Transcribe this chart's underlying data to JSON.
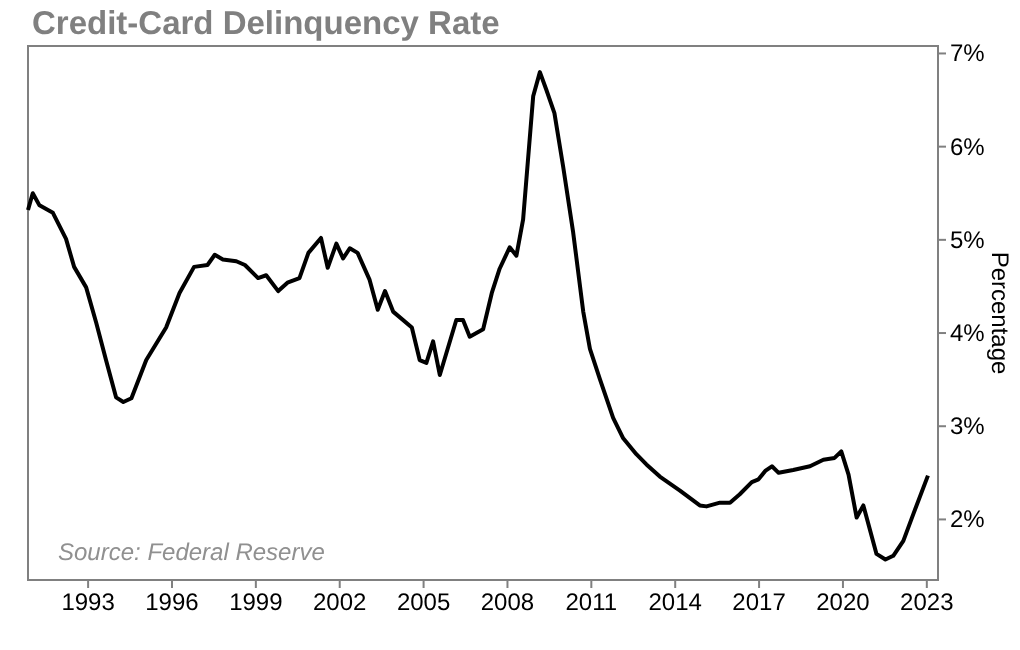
{
  "chart_data": {
    "type": "line",
    "title": "Credit-Card Delinquency Rate",
    "ylabel": "Percentage",
    "annotations": [
      "Source: Federal Reserve"
    ],
    "xlim": [
      1990.85,
      2023.4
    ],
    "xticks": [
      1993,
      1996,
      1999,
      2002,
      2005,
      2008,
      2011,
      2014,
      2017,
      2020,
      2023
    ],
    "ylim": [
      1.35,
      7.08
    ],
    "yticks": [
      {
        "value": 2,
        "label": "2%"
      },
      {
        "value": 3,
        "label": "3%"
      },
      {
        "value": 4,
        "label": "4%"
      },
      {
        "value": 5,
        "label": "5%"
      },
      {
        "value": 6,
        "label": "6%"
      },
      {
        "value": 7,
        "label": "7%"
      }
    ],
    "grid": false,
    "marker": "none",
    "line_style": "solid",
    "series": [
      {
        "color": "#000000",
        "x": [
          1990.85,
          1991.02,
          1991.26,
          1991.74,
          1992.21,
          1992.5,
          1992.93,
          1993.29,
          1993.64,
          1994.0,
          1994.26,
          1994.55,
          1995.08,
          1995.79,
          1996.27,
          1996.79,
          1997.27,
          1997.53,
          1997.82,
          1998.3,
          1998.61,
          1999.08,
          1999.37,
          1999.8,
          2000.13,
          2000.56,
          2000.88,
          2001.33,
          2001.57,
          2001.88,
          2002.12,
          2002.36,
          2002.64,
          2003.07,
          2003.36,
          2003.62,
          2003.91,
          2004.58,
          2004.86,
          2005.1,
          2005.34,
          2005.58,
          2006.17,
          2006.41,
          2006.65,
          2007.13,
          2007.44,
          2007.72,
          2008.08,
          2008.32,
          2008.56,
          2008.92,
          2009.16,
          2009.39,
          2009.68,
          2009.99,
          2010.35,
          2010.71,
          2010.95,
          2011.3,
          2011.78,
          2012.14,
          2012.61,
          2012.97,
          2013.45,
          2014.17,
          2014.88,
          2015.12,
          2015.6,
          2015.96,
          2016.31,
          2016.74,
          2016.98,
          2017.22,
          2017.46,
          2017.7,
          2018.22,
          2018.82,
          2019.3,
          2019.7,
          2019.94,
          2020.2,
          2020.49,
          2020.73,
          2021.2,
          2021.52,
          2021.8,
          2022.16,
          2022.52,
          2023.04
        ],
        "values": [
          5.32,
          5.5,
          5.37,
          5.29,
          5.01,
          4.71,
          4.49,
          4.11,
          3.71,
          3.31,
          3.26,
          3.3,
          3.71,
          4.06,
          4.43,
          4.71,
          4.73,
          4.84,
          4.79,
          4.77,
          4.73,
          4.59,
          4.62,
          4.45,
          4.54,
          4.59,
          4.86,
          5.02,
          4.7,
          4.96,
          4.8,
          4.91,
          4.86,
          4.57,
          4.25,
          4.45,
          4.23,
          4.06,
          3.71,
          3.68,
          3.91,
          3.55,
          4.14,
          4.14,
          3.96,
          4.04,
          4.43,
          4.69,
          4.92,
          4.83,
          5.22,
          6.54,
          6.8,
          6.61,
          6.36,
          5.79,
          5.08,
          4.23,
          3.83,
          3.51,
          3.09,
          2.87,
          2.7,
          2.59,
          2.46,
          2.31,
          2.15,
          2.14,
          2.18,
          2.18,
          2.27,
          2.4,
          2.43,
          2.52,
          2.57,
          2.5,
          2.53,
          2.57,
          2.64,
          2.66,
          2.73,
          2.48,
          2.02,
          2.15,
          1.63,
          1.57,
          1.61,
          1.77,
          2.06,
          2.47
        ]
      }
    ]
  }
}
